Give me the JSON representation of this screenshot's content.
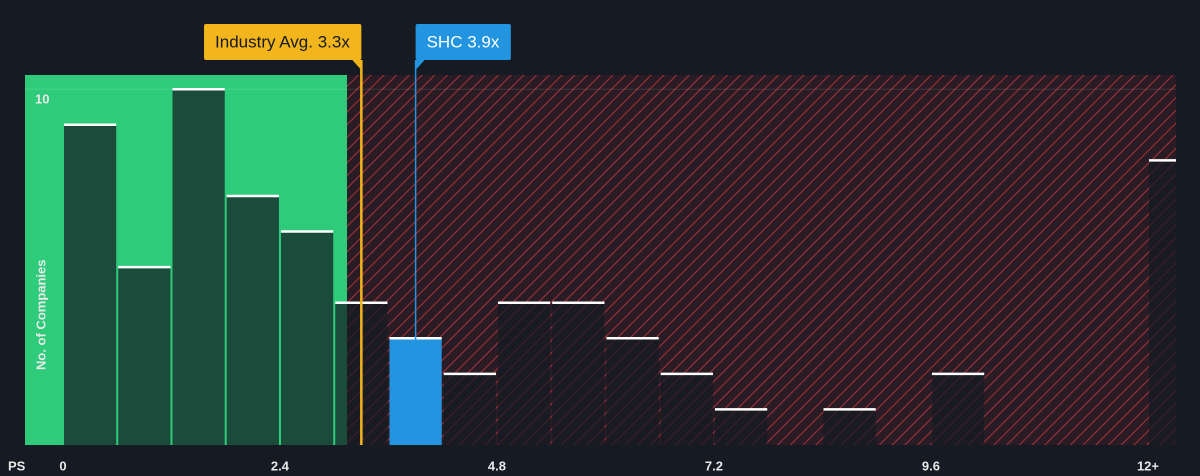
{
  "chart_data": {
    "type": "histogram",
    "x_label": "PS",
    "y_label": "No. of Companies",
    "bins": [
      0,
      0.6,
      1.2,
      1.8,
      2.4,
      3.0,
      3.6,
      4.2,
      4.8,
      5.4,
      6.0,
      6.6,
      7.2,
      7.8,
      8.4,
      9.0,
      9.6,
      10.2,
      10.8,
      11.4,
      12.0,
      12.6
    ],
    "counts": [
      9,
      5,
      10,
      7,
      6,
      4,
      3,
      2,
      4,
      4,
      3,
      2,
      1,
      0,
      1,
      0,
      2,
      0,
      0,
      0,
      8
    ],
    "xlim": [
      -0.42,
      12.31
    ],
    "xticks": [
      0,
      2.4,
      4.8,
      7.2,
      9.6,
      {
        "value": 12,
        "label": "12+"
      }
    ],
    "ylim": [
      0,
      10.4
    ],
    "yticks": [
      10
    ],
    "annotations": [
      {
        "label": "Industry Avg. 3.3x",
        "value": 3.3,
        "color": "#f2b51c"
      },
      {
        "label": "SHC 3.9x",
        "value": 3.9,
        "color": "#2394e0"
      }
    ]
  }
}
